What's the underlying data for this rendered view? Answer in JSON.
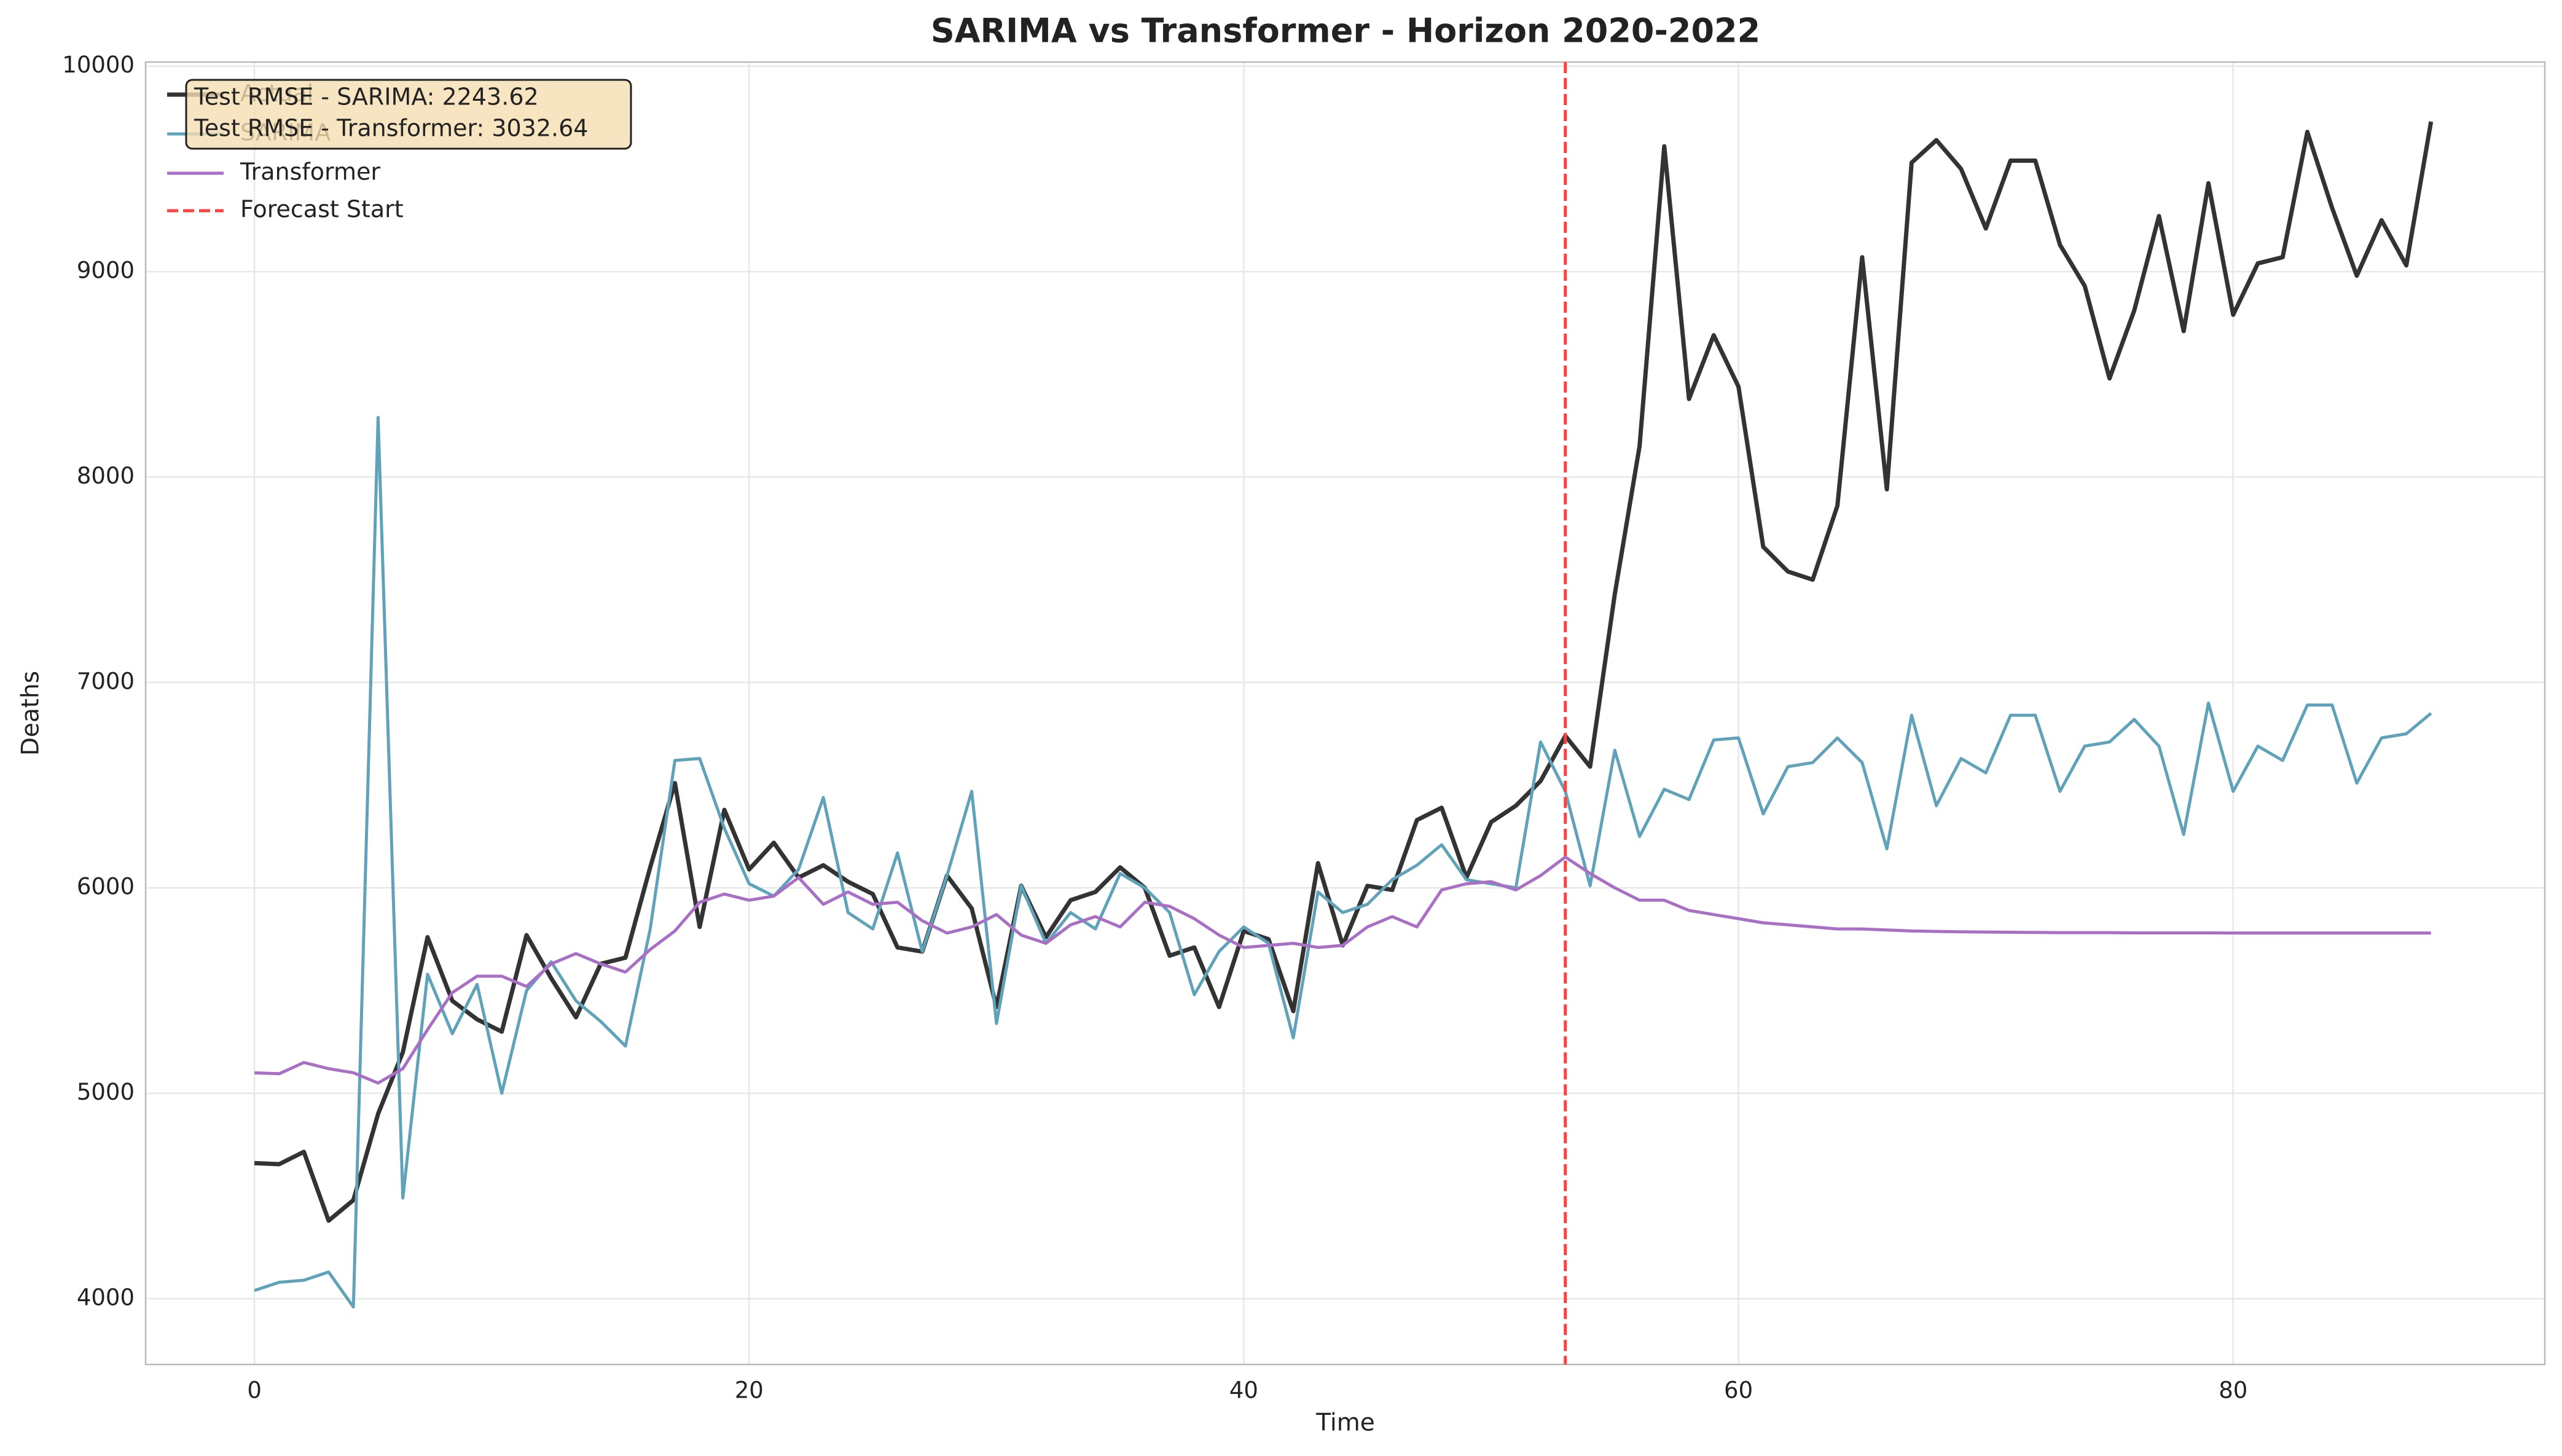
{
  "chart_data": {
    "type": "line",
    "title": "SARIMA vs Transformer - Horizon 2020-2022",
    "xlabel": "Time",
    "ylabel": "Deaths",
    "x": [
      0,
      1,
      2,
      3,
      4,
      5,
      6,
      7,
      8,
      9,
      10,
      11,
      12,
      13,
      14,
      15,
      16,
      17,
      18,
      19,
      20,
      21,
      22,
      23,
      24,
      25,
      26,
      27,
      28,
      29,
      30,
      31,
      32,
      33,
      34,
      35,
      36,
      37,
      38,
      39,
      40,
      41,
      42,
      43,
      44,
      45,
      46,
      47,
      48,
      49,
      50,
      51,
      52,
      53,
      54,
      55,
      56,
      57,
      58,
      59,
      60,
      61,
      62,
      63,
      64,
      65,
      66,
      67,
      68,
      69,
      70,
      71,
      72,
      73,
      74,
      75,
      76,
      77,
      78,
      79,
      80,
      81,
      82,
      83,
      84,
      85,
      86,
      87,
      88
    ],
    "series": [
      {
        "name": "Actual",
        "color": "#333333",
        "width": 7,
        "values": [
          4660,
          4655,
          4715,
          4380,
          4480,
          4900,
          5200,
          5760,
          5450,
          5360,
          5300,
          5770,
          5560,
          5370,
          5630,
          5660,
          6100,
          6510,
          5810,
          6380,
          6090,
          6220,
          6050,
          6110,
          6030,
          5970,
          5710,
          5690,
          6060,
          5900,
          5420,
          6010,
          5760,
          5940,
          5980,
          6100,
          6000,
          5670,
          5710,
          5420,
          5790,
          5750,
          5400,
          6120,
          5720,
          6010,
          5990,
          6330,
          6390,
          6050,
          6320,
          6400,
          6520,
          6740,
          6590,
          7430,
          8150,
          9610,
          8380,
          8690,
          8440,
          7660,
          7540,
          7500,
          7860,
          9070,
          7940,
          9530,
          9640,
          9500,
          9210,
          9540,
          9540,
          9130,
          8930,
          8480,
          8810,
          9270,
          8710,
          9430,
          8790,
          9040,
          9070,
          9680,
          9310,
          8980,
          9250,
          9030,
          9730
        ]
      },
      {
        "name": "SARIMA",
        "color": "#5fa2ba",
        "width": 5,
        "values": [
          4040,
          4080,
          4090,
          4130,
          3960,
          8290,
          4490,
          5580,
          5290,
          5530,
          5000,
          5500,
          5640,
          5450,
          5350,
          5230,
          5800,
          6620,
          6630,
          6290,
          6020,
          5960,
          6090,
          6440,
          5880,
          5800,
          6170,
          5690,
          6060,
          6470,
          5340,
          6010,
          5730,
          5880,
          5800,
          6070,
          6000,
          5880,
          5480,
          5690,
          5810,
          5730,
          5270,
          5980,
          5880,
          5920,
          6040,
          6110,
          6210,
          6040,
          6020,
          6000,
          6710,
          6470,
          6010,
          6670,
          6250,
          6480,
          6430,
          6720,
          6730,
          6360,
          6590,
          6610,
          6730,
          6610,
          6190,
          6840,
          6400,
          6630,
          6560,
          6840,
          6840,
          6470,
          6690,
          6710,
          6820,
          6690,
          6260,
          6900,
          6470,
          6690,
          6620,
          6890,
          6890,
          6510,
          6730,
          6750,
          6850
        ]
      },
      {
        "name": "Transformer",
        "color": "#a86fc4",
        "width": 5,
        "values": [
          5100,
          5095,
          5150,
          5120,
          5100,
          5050,
          5120,
          5310,
          5490,
          5570,
          5570,
          5520,
          5630,
          5680,
          5630,
          5590,
          5700,
          5790,
          5930,
          5970,
          5940,
          5960,
          6050,
          5920,
          5980,
          5920,
          5930,
          5840,
          5780,
          5810,
          5870,
          5770,
          5730,
          5820,
          5860,
          5810,
          5930,
          5910,
          5850,
          5770,
          5710,
          5720,
          5730,
          5710,
          5720,
          5810,
          5860,
          5810,
          5990,
          6020,
          6030,
          5990,
          6060,
          6150,
          6070,
          6000,
          5940,
          5940,
          5890,
          5870,
          5850,
          5830,
          5820,
          5810,
          5800,
          5800,
          5795,
          5790,
          5788,
          5786,
          5785,
          5784,
          5783,
          5782,
          5782,
          5782,
          5781,
          5781,
          5781,
          5781,
          5780,
          5780,
          5780,
          5780,
          5780,
          5780,
          5780,
          5780,
          5780
        ]
      }
    ],
    "forecast_start": 53,
    "forecast_label": "Forecast Start",
    "forecast_color": "#ff4040",
    "annotations": [
      "Test RMSE - SARIMA: 2243.62",
      "Test RMSE - Transformer: 3032.64"
    ],
    "xlim": [
      -4.4,
      92.6
    ],
    "ylim": [
      3680,
      10020
    ],
    "xticks": [
      0,
      20,
      40,
      60,
      80
    ],
    "yticks": [
      4000,
      5000,
      6000,
      7000,
      8000,
      9000,
      10000
    ],
    "grid": true,
    "legend": "upper left"
  }
}
